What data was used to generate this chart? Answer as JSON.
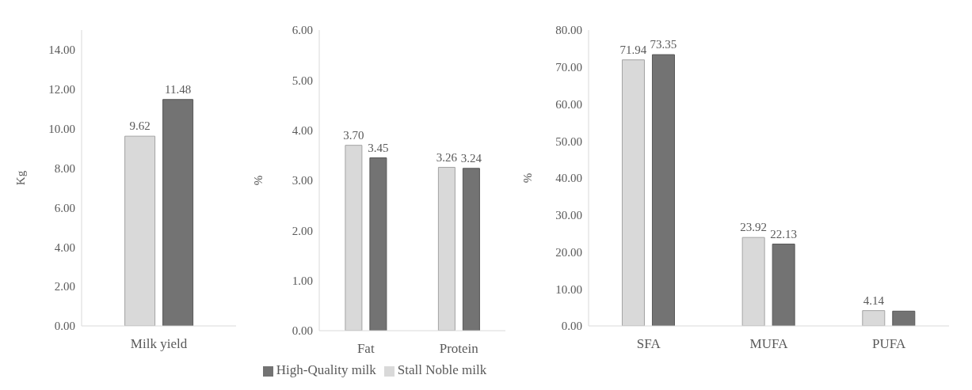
{
  "chart_data": [
    {
      "type": "bar",
      "categories": [
        "Milk yield"
      ],
      "ylabel": "Kg",
      "ylim": [
        0,
        15
      ],
      "yticks": [
        {
          "value": 0,
          "label": "0.00"
        },
        {
          "value": 2,
          "label": "2.00"
        },
        {
          "value": 4,
          "label": "4.00"
        },
        {
          "value": 6,
          "label": "6.00"
        },
        {
          "value": 8,
          "label": "8.00"
        },
        {
          "value": 10,
          "label": "10.00"
        },
        {
          "value": 12,
          "label": "12.00"
        },
        {
          "value": 14,
          "label": "14.00"
        }
      ],
      "grid": false,
      "legend": false,
      "series": [
        {
          "color": "#d9d9d9",
          "values": [
            9.62
          ],
          "value_labels": [
            "9.62"
          ]
        },
        {
          "color": "#737373",
          "values": [
            11.48
          ],
          "value_labels": [
            "11.48"
          ]
        }
      ]
    },
    {
      "type": "bar",
      "categories": [
        "Fat",
        "Protein"
      ],
      "ylabel": "%",
      "ylim": [
        0,
        6
      ],
      "yticks": [
        {
          "value": 0,
          "label": "0.00"
        },
        {
          "value": 1,
          "label": "1.00"
        },
        {
          "value": 2,
          "label": "2.00"
        },
        {
          "value": 3,
          "label": "3.00"
        },
        {
          "value": 4,
          "label": "4.00"
        },
        {
          "value": 5,
          "label": "5.00"
        },
        {
          "value": 6,
          "label": "6.00"
        }
      ],
      "grid": false,
      "legend": "bottom",
      "series": [
        {
          "name": "Stall Noble milk",
          "color": "#d9d9d9",
          "values": [
            3.7,
            3.26
          ],
          "value_labels": [
            "3.70",
            "3.26"
          ]
        },
        {
          "name": "High-Quality milk",
          "color": "#737373",
          "values": [
            3.45,
            3.24
          ],
          "value_labels": [
            "3.45",
            "3.24"
          ]
        }
      ]
    },
    {
      "type": "bar",
      "categories": [
        "SFA",
        "MUFA",
        "PUFA"
      ],
      "ylabel": "%",
      "ylim": [
        0,
        80
      ],
      "yticks": [
        {
          "value": 0,
          "label": "0.00"
        },
        {
          "value": 10,
          "label": "10.00"
        },
        {
          "value": 20,
          "label": "20.00"
        },
        {
          "value": 30,
          "label": "30.00"
        },
        {
          "value": 40,
          "label": "40.00"
        },
        {
          "value": 50,
          "label": "50.00"
        },
        {
          "value": 60,
          "label": "60.00"
        },
        {
          "value": 70,
          "label": "70.00"
        },
        {
          "value": 80,
          "label": "80.00"
        }
      ],
      "grid": false,
      "legend": false,
      "series": [
        {
          "color": "#d9d9d9",
          "values": [
            71.94,
            23.92,
            4.14
          ],
          "value_labels": [
            "71.94",
            "23.92",
            "4.14"
          ]
        },
        {
          "color": "#737373",
          "values": [
            73.35,
            22.13,
            4.0
          ],
          "value_labels": [
            "73.35",
            "22.13",
            null
          ]
        }
      ]
    }
  ]
}
